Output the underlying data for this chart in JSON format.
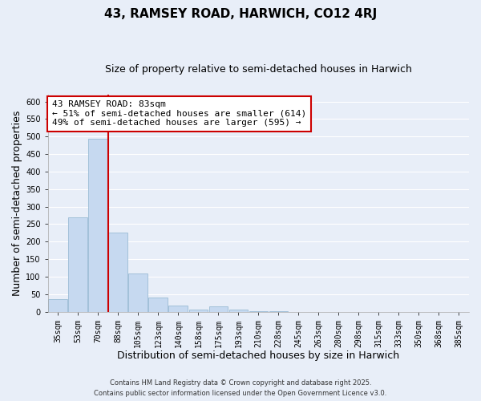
{
  "title": "43, RAMSEY ROAD, HARWICH, CO12 4RJ",
  "subtitle": "Size of property relative to semi-detached houses in Harwich",
  "xlabel": "Distribution of semi-detached houses by size in Harwich",
  "ylabel": "Number of semi-detached properties",
  "bin_labels": [
    "35sqm",
    "53sqm",
    "70sqm",
    "88sqm",
    "105sqm",
    "123sqm",
    "140sqm",
    "158sqm",
    "175sqm",
    "193sqm",
    "210sqm",
    "228sqm",
    "245sqm",
    "263sqm",
    "280sqm",
    "298sqm",
    "315sqm",
    "333sqm",
    "350sqm",
    "368sqm",
    "385sqm"
  ],
  "bar_heights": [
    35,
    270,
    493,
    225,
    108,
    40,
    18,
    5,
    16,
    5,
    2,
    1,
    0,
    0,
    0,
    0,
    0,
    0,
    0,
    0,
    0
  ],
  "bar_color": "#c6d9f0",
  "bar_edge_color": "#9abbd4",
  "vline_color": "#cc0000",
  "annotation_text": "43 RAMSEY ROAD: 83sqm\n← 51% of semi-detached houses are smaller (614)\n49% of semi-detached houses are larger (595) →",
  "annotation_box_color": "#ffffff",
  "annotation_box_edge": "#cc0000",
  "ylim": [
    0,
    620
  ],
  "yticks": [
    0,
    50,
    100,
    150,
    200,
    250,
    300,
    350,
    400,
    450,
    500,
    550,
    600
  ],
  "footer_line1": "Contains HM Land Registry data © Crown copyright and database right 2025.",
  "footer_line2": "Contains public sector information licensed under the Open Government Licence v3.0.",
  "bg_color": "#e8eef8",
  "grid_color": "#ffffff",
  "title_fontsize": 11,
  "subtitle_fontsize": 9,
  "axis_label_fontsize": 9,
  "tick_fontsize": 7,
  "annotation_fontsize": 8,
  "footer_fontsize": 6
}
